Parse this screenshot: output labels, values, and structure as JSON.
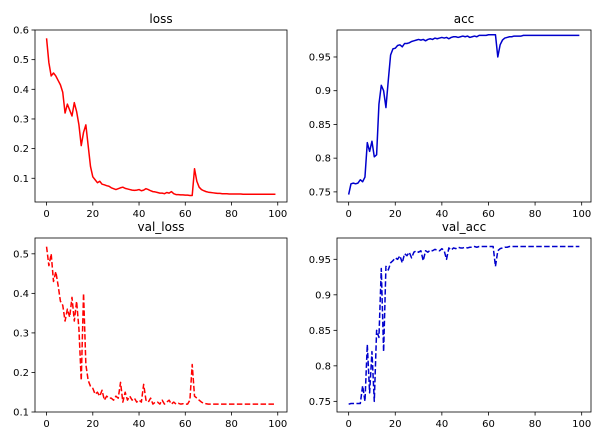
{
  "figure": {
    "background": "#ffffff"
  },
  "chart_data": [
    {
      "type": "line",
      "title": "loss",
      "color": "#ff0000",
      "linestyle": "solid",
      "xlim": [
        -5,
        104
      ],
      "ylim": [
        0.02,
        0.6
      ],
      "xticks": [
        0,
        20,
        40,
        60,
        80,
        100
      ],
      "yticks": [
        0.1,
        0.2,
        0.3,
        0.4,
        0.5,
        0.6
      ],
      "x": [
        0,
        1,
        2,
        3,
        4,
        5,
        6,
        7,
        8,
        9,
        10,
        11,
        12,
        13,
        14,
        15,
        16,
        17,
        18,
        19,
        20,
        21,
        22,
        23,
        24,
        25,
        26,
        27,
        28,
        29,
        30,
        31,
        32,
        33,
        34,
        35,
        36,
        37,
        38,
        39,
        40,
        41,
        42,
        43,
        44,
        45,
        46,
        47,
        48,
        49,
        50,
        51,
        52,
        53,
        54,
        55,
        56,
        57,
        58,
        59,
        60,
        61,
        62,
        63,
        64,
        65,
        66,
        67,
        68,
        69,
        70,
        71,
        72,
        73,
        74,
        75,
        76,
        77,
        78,
        79,
        80,
        81,
        82,
        83,
        84,
        85,
        86,
        87,
        88,
        89,
        90,
        91,
        92,
        93,
        94,
        95,
        96,
        97,
        98,
        99
      ],
      "y": [
        0.572,
        0.49,
        0.445,
        0.455,
        0.445,
        0.43,
        0.415,
        0.39,
        0.32,
        0.35,
        0.33,
        0.31,
        0.355,
        0.325,
        0.28,
        0.21,
        0.255,
        0.28,
        0.21,
        0.14,
        0.105,
        0.095,
        0.085,
        0.09,
        0.08,
        0.078,
        0.075,
        0.073,
        0.068,
        0.065,
        0.062,
        0.065,
        0.068,
        0.07,
        0.066,
        0.064,
        0.062,
        0.06,
        0.059,
        0.06,
        0.062,
        0.058,
        0.06,
        0.065,
        0.062,
        0.058,
        0.055,
        0.054,
        0.052,
        0.05,
        0.05,
        0.048,
        0.052,
        0.05,
        0.055,
        0.048,
        0.045,
        0.045,
        0.044,
        0.044,
        0.043,
        0.043,
        0.042,
        0.042,
        0.132,
        0.09,
        0.07,
        0.062,
        0.058,
        0.055,
        0.053,
        0.052,
        0.051,
        0.05,
        0.049,
        0.049,
        0.048,
        0.048,
        0.048,
        0.047,
        0.047,
        0.047,
        0.047,
        0.047,
        0.047,
        0.046,
        0.046,
        0.046,
        0.046,
        0.046,
        0.046,
        0.046,
        0.046,
        0.046,
        0.046,
        0.046,
        0.046,
        0.046,
        0.046,
        0.046
      ]
    },
    {
      "type": "line",
      "title": "acc",
      "color": "#0000cc",
      "linestyle": "solid",
      "xlim": [
        -5,
        104
      ],
      "ylim": [
        0.735,
        0.99
      ],
      "xticks": [
        0,
        20,
        40,
        60,
        80,
        100
      ],
      "yticks": [
        0.75,
        0.8,
        0.85,
        0.9,
        0.95
      ],
      "x": [
        0,
        1,
        2,
        3,
        4,
        5,
        6,
        7,
        8,
        9,
        10,
        11,
        12,
        13,
        14,
        15,
        16,
        17,
        18,
        19,
        20,
        21,
        22,
        23,
        24,
        25,
        26,
        27,
        28,
        29,
        30,
        31,
        32,
        33,
        34,
        35,
        36,
        37,
        38,
        39,
        40,
        41,
        42,
        43,
        44,
        45,
        46,
        47,
        48,
        49,
        50,
        51,
        52,
        53,
        54,
        55,
        56,
        57,
        58,
        59,
        60,
        61,
        62,
        63,
        64,
        65,
        66,
        67,
        68,
        69,
        70,
        71,
        72,
        73,
        74,
        75,
        76,
        77,
        78,
        79,
        80,
        81,
        82,
        83,
        84,
        85,
        86,
        87,
        88,
        89,
        90,
        91,
        92,
        93,
        94,
        95,
        96,
        97,
        98,
        99
      ],
      "y": [
        0.746,
        0.762,
        0.763,
        0.762,
        0.763,
        0.768,
        0.765,
        0.772,
        0.823,
        0.81,
        0.825,
        0.802,
        0.805,
        0.88,
        0.908,
        0.9,
        0.875,
        0.915,
        0.953,
        0.962,
        0.963,
        0.967,
        0.968,
        0.965,
        0.97,
        0.97,
        0.971,
        0.973,
        0.974,
        0.975,
        0.976,
        0.975,
        0.976,
        0.974,
        0.976,
        0.977,
        0.976,
        0.978,
        0.977,
        0.978,
        0.979,
        0.978,
        0.979,
        0.977,
        0.979,
        0.98,
        0.98,
        0.979,
        0.98,
        0.981,
        0.98,
        0.981,
        0.979,
        0.98,
        0.981,
        0.98,
        0.982,
        0.982,
        0.982,
        0.982,
        0.983,
        0.983,
        0.983,
        0.983,
        0.95,
        0.968,
        0.975,
        0.978,
        0.979,
        0.98,
        0.98,
        0.981,
        0.981,
        0.981,
        0.981,
        0.982,
        0.982,
        0.982,
        0.982,
        0.982,
        0.982,
        0.982,
        0.982,
        0.982,
        0.982,
        0.982,
        0.982,
        0.982,
        0.982,
        0.982,
        0.982,
        0.982,
        0.982,
        0.982,
        0.982,
        0.982,
        0.982,
        0.982,
        0.982,
        0.982
      ]
    },
    {
      "type": "line",
      "title": "val_loss",
      "color": "#ff0000",
      "linestyle": "dashed",
      "xlim": [
        -5,
        104
      ],
      "ylim": [
        0.1,
        0.54
      ],
      "xticks": [
        0,
        20,
        40,
        60,
        80,
        100
      ],
      "yticks": [
        0.1,
        0.2,
        0.3,
        0.4,
        0.5
      ],
      "x": [
        0,
        1,
        2,
        3,
        4,
        5,
        6,
        7,
        8,
        9,
        10,
        11,
        12,
        13,
        14,
        15,
        16,
        17,
        18,
        19,
        20,
        21,
        22,
        23,
        24,
        25,
        26,
        27,
        28,
        29,
        30,
        31,
        32,
        33,
        34,
        35,
        36,
        37,
        38,
        39,
        40,
        41,
        42,
        43,
        44,
        45,
        46,
        47,
        48,
        49,
        50,
        51,
        52,
        53,
        54,
        55,
        56,
        57,
        58,
        59,
        60,
        61,
        62,
        63,
        64,
        65,
        66,
        67,
        68,
        69,
        70,
        71,
        72,
        73,
        74,
        75,
        76,
        77,
        78,
        79,
        80,
        81,
        82,
        83,
        84,
        85,
        86,
        87,
        88,
        89,
        90,
        91,
        92,
        93,
        94,
        95,
        96,
        97,
        98,
        99
      ],
      "y": [
        0.518,
        0.47,
        0.5,
        0.43,
        0.455,
        0.42,
        0.38,
        0.37,
        0.33,
        0.36,
        0.34,
        0.39,
        0.33,
        0.38,
        0.31,
        0.18,
        0.4,
        0.22,
        0.18,
        0.165,
        0.16,
        0.145,
        0.15,
        0.14,
        0.155,
        0.13,
        0.14,
        0.135,
        0.135,
        0.13,
        0.14,
        0.135,
        0.175,
        0.125,
        0.15,
        0.13,
        0.14,
        0.13,
        0.135,
        0.125,
        0.13,
        0.125,
        0.17,
        0.13,
        0.125,
        0.135,
        0.12,
        0.125,
        0.125,
        0.12,
        0.13,
        0.12,
        0.125,
        0.13,
        0.12,
        0.125,
        0.12,
        0.122,
        0.12,
        0.121,
        0.12,
        0.12,
        0.13,
        0.22,
        0.14,
        0.135,
        0.13,
        0.125,
        0.122,
        0.121,
        0.12,
        0.12,
        0.12,
        0.12,
        0.12,
        0.12,
        0.12,
        0.12,
        0.12,
        0.12,
        0.12,
        0.12,
        0.12,
        0.12,
        0.12,
        0.12,
        0.12,
        0.12,
        0.12,
        0.12,
        0.12,
        0.12,
        0.12,
        0.12,
        0.12,
        0.12,
        0.12,
        0.12,
        0.12,
        0.12
      ]
    },
    {
      "type": "line",
      "title": "val_acc",
      "color": "#0000cc",
      "linestyle": "dashed",
      "xlim": [
        -5,
        104
      ],
      "ylim": [
        0.735,
        0.98
      ],
      "xticks": [
        0,
        20,
        40,
        60,
        80,
        100
      ],
      "yticks": [
        0.75,
        0.8,
        0.85,
        0.9,
        0.95
      ],
      "x": [
        0,
        1,
        2,
        3,
        4,
        5,
        6,
        7,
        8,
        9,
        10,
        11,
        12,
        13,
        14,
        15,
        16,
        17,
        18,
        19,
        20,
        21,
        22,
        23,
        24,
        25,
        26,
        27,
        28,
        29,
        30,
        31,
        32,
        33,
        34,
        35,
        36,
        37,
        38,
        39,
        40,
        41,
        42,
        43,
        44,
        45,
        46,
        47,
        48,
        49,
        50,
        51,
        52,
        53,
        54,
        55,
        56,
        57,
        58,
        59,
        60,
        61,
        62,
        63,
        64,
        65,
        66,
        67,
        68,
        69,
        70,
        71,
        72,
        73,
        74,
        75,
        76,
        77,
        78,
        79,
        80,
        81,
        82,
        83,
        84,
        85,
        86,
        87,
        88,
        89,
        90,
        91,
        92,
        93,
        94,
        95,
        96,
        97,
        98,
        99
      ],
      "y": [
        0.746,
        0.747,
        0.747,
        0.747,
        0.747,
        0.747,
        0.772,
        0.75,
        0.83,
        0.762,
        0.82,
        0.75,
        0.85,
        0.84,
        0.937,
        0.82,
        0.94,
        0.935,
        0.945,
        0.948,
        0.952,
        0.95,
        0.955,
        0.945,
        0.958,
        0.955,
        0.96,
        0.952,
        0.96,
        0.962,
        0.96,
        0.962,
        0.948,
        0.962,
        0.96,
        0.963,
        0.962,
        0.964,
        0.963,
        0.962,
        0.965,
        0.962,
        0.95,
        0.966,
        0.963,
        0.966,
        0.965,
        0.967,
        0.966,
        0.966,
        0.967,
        0.966,
        0.967,
        0.967,
        0.968,
        0.967,
        0.968,
        0.968,
        0.968,
        0.968,
        0.968,
        0.968,
        0.968,
        0.94,
        0.962,
        0.965,
        0.966,
        0.967,
        0.967,
        0.968,
        0.968,
        0.968,
        0.968,
        0.968,
        0.968,
        0.968,
        0.968,
        0.968,
        0.968,
        0.968,
        0.968,
        0.968,
        0.968,
        0.968,
        0.968,
        0.968,
        0.968,
        0.968,
        0.968,
        0.968,
        0.968,
        0.968,
        0.968,
        0.968,
        0.968,
        0.968,
        0.968,
        0.968,
        0.968,
        0.968
      ]
    }
  ]
}
